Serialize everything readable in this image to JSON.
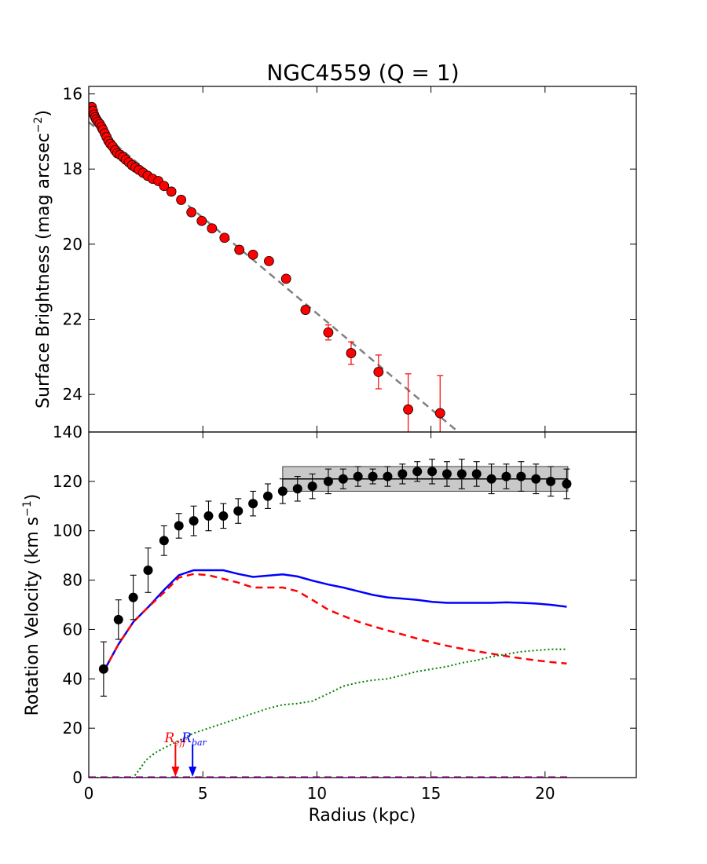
{
  "title": "NGC4559 (Q = 1)",
  "chart_data": [
    {
      "type": "scatter",
      "xlabel": "",
      "ylabel": "Surface Brightness (mag arcsec",
      "ylabel_sup": "−2",
      "ylabel_close": ")",
      "xlim": [
        0,
        24
      ],
      "ylim": [
        25,
        15.8
      ],
      "y_inverted": true,
      "yticks": [
        16,
        18,
        20,
        22,
        24
      ],
      "xticks": [
        0,
        5,
        10,
        15,
        20
      ],
      "show_xticklabels": false,
      "marker_color": "#ff0000",
      "fit_line": {
        "style": "dashed",
        "color": "#808080",
        "x": [
          0,
          16.2
        ],
        "y": [
          16.75,
          25.0
        ]
      },
      "series": [
        {
          "points": [
            {
              "x": 0.13,
              "y": 16.35
            },
            {
              "x": 0.18,
              "y": 16.45
            },
            {
              "x": 0.23,
              "y": 16.55
            },
            {
              "x": 0.28,
              "y": 16.62
            },
            {
              "x": 0.33,
              "y": 16.68
            },
            {
              "x": 0.4,
              "y": 16.74
            },
            {
              "x": 0.48,
              "y": 16.8
            },
            {
              "x": 0.56,
              "y": 16.88
            },
            {
              "x": 0.62,
              "y": 16.95
            },
            {
              "x": 0.7,
              "y": 17.05
            },
            {
              "x": 0.78,
              "y": 17.15
            },
            {
              "x": 0.86,
              "y": 17.25
            },
            {
              "x": 0.95,
              "y": 17.33
            },
            {
              "x": 1.05,
              "y": 17.4
            },
            {
              "x": 1.15,
              "y": 17.5
            },
            {
              "x": 1.25,
              "y": 17.58
            },
            {
              "x": 1.38,
              "y": 17.62
            },
            {
              "x": 1.5,
              "y": 17.68
            },
            {
              "x": 1.62,
              "y": 17.75
            },
            {
              "x": 1.76,
              "y": 17.82
            },
            {
              "x": 1.9,
              "y": 17.9
            },
            {
              "x": 2.05,
              "y": 17.96
            },
            {
              "x": 2.2,
              "y": 18.02
            },
            {
              "x": 2.38,
              "y": 18.1
            },
            {
              "x": 2.58,
              "y": 18.18
            },
            {
              "x": 2.8,
              "y": 18.26
            },
            {
              "x": 3.05,
              "y": 18.32
            },
            {
              "x": 3.3,
              "y": 18.45
            },
            {
              "x": 3.62,
              "y": 18.6
            },
            {
              "x": 4.05,
              "y": 18.82
            },
            {
              "x": 4.5,
              "y": 19.15
            },
            {
              "x": 4.95,
              "y": 19.38
            },
            {
              "x": 5.4,
              "y": 19.58
            },
            {
              "x": 5.95,
              "y": 19.83
            },
            {
              "x": 6.6,
              "y": 20.15
            },
            {
              "x": 7.2,
              "y": 20.28
            },
            {
              "x": 7.9,
              "y": 20.45
            },
            {
              "x": 8.65,
              "y": 20.92
            },
            {
              "x": 9.5,
              "y": 21.75
            },
            {
              "x": 10.5,
              "y": 22.35,
              "err": 0.2
            },
            {
              "x": 11.5,
              "y": 22.9,
              "err": 0.3
            },
            {
              "x": 12.7,
              "y": 23.4,
              "err": 0.45
            },
            {
              "x": 14.0,
              "y": 24.4,
              "err": 0.95
            },
            {
              "x": 15.4,
              "y": 24.5,
              "err": 1.0
            }
          ]
        }
      ]
    },
    {
      "type": "line",
      "xlabel": "Radius (kpc)",
      "ylabel": "Rotation Velocity (km s",
      "ylabel_sup": "−1",
      "ylabel_close": ")",
      "xlim": [
        0,
        24
      ],
      "ylim": [
        0,
        140
      ],
      "xticks": [
        0,
        5,
        10,
        15,
        20
      ],
      "yticks": [
        0,
        20,
        40,
        60,
        80,
        100,
        120,
        140
      ],
      "flat_band": {
        "x": [
          8.5,
          21.0
        ],
        "y_center": 121.0,
        "y_low": 116.0,
        "y_high": 126.0
      },
      "observed": {
        "color": "#000000",
        "points": [
          {
            "x": 0.65,
            "y": 44,
            "err": 11
          },
          {
            "x": 1.3,
            "y": 64,
            "err": 8
          },
          {
            "x": 1.95,
            "y": 73,
            "err": 9
          },
          {
            "x": 2.6,
            "y": 84,
            "err": 9
          },
          {
            "x": 3.3,
            "y": 96,
            "err": 6
          },
          {
            "x": 3.95,
            "y": 102,
            "err": 5
          },
          {
            "x": 4.6,
            "y": 104,
            "err": 6
          },
          {
            "x": 5.25,
            "y": 106,
            "err": 6
          },
          {
            "x": 5.9,
            "y": 106,
            "err": 5
          },
          {
            "x": 6.55,
            "y": 108,
            "err": 5
          },
          {
            "x": 7.2,
            "y": 111,
            "err": 5
          },
          {
            "x": 7.85,
            "y": 114,
            "err": 5
          },
          {
            "x": 8.5,
            "y": 116,
            "err": 5
          },
          {
            "x": 9.15,
            "y": 117,
            "err": 5
          },
          {
            "x": 9.8,
            "y": 118,
            "err": 5
          },
          {
            "x": 10.5,
            "y": 120,
            "err": 5
          },
          {
            "x": 11.15,
            "y": 121,
            "err": 4
          },
          {
            "x": 11.8,
            "y": 122,
            "err": 4
          },
          {
            "x": 12.45,
            "y": 122,
            "err": 3
          },
          {
            "x": 13.1,
            "y": 122,
            "err": 4
          },
          {
            "x": 13.75,
            "y": 123,
            "err": 4
          },
          {
            "x": 14.4,
            "y": 124,
            "err": 4
          },
          {
            "x": 15.05,
            "y": 124,
            "err": 5
          },
          {
            "x": 15.7,
            "y": 123,
            "err": 5
          },
          {
            "x": 16.35,
            "y": 123,
            "err": 6
          },
          {
            "x": 17.0,
            "y": 123,
            "err": 5
          },
          {
            "x": 17.65,
            "y": 121,
            "err": 6
          },
          {
            "x": 18.3,
            "y": 122,
            "err": 5
          },
          {
            "x": 18.95,
            "y": 122,
            "err": 6
          },
          {
            "x": 19.6,
            "y": 121,
            "err": 6
          },
          {
            "x": 20.25,
            "y": 120,
            "err": 6
          },
          {
            "x": 20.95,
            "y": 119,
            "err": 6
          }
        ]
      },
      "series": [
        {
          "style": "solid",
          "color": "#0000ff",
          "x": [
            0.65,
            1.3,
            1.95,
            2.6,
            3.3,
            3.95,
            4.6,
            5.25,
            5.9,
            6.55,
            7.2,
            7.85,
            8.5,
            9.15,
            9.8,
            10.5,
            11.15,
            11.8,
            12.45,
            13.1,
            13.75,
            14.4,
            15.05,
            15.7,
            16.35,
            17.0,
            17.65,
            18.3,
            18.95,
            19.6,
            20.25,
            20.95
          ],
          "y": [
            43,
            54,
            63,
            69,
            76,
            82,
            84,
            84,
            84,
            82.5,
            81.3,
            81.8,
            82.3,
            81.5,
            79.8,
            78.2,
            77,
            75.5,
            74,
            73,
            72.5,
            72,
            71.2,
            70.8,
            70.8,
            70.8,
            70.8,
            71,
            70.8,
            70.5,
            70,
            69.2
          ]
        },
        {
          "style": "dashed",
          "color": "#ff0000",
          "x": [
            0.65,
            1.3,
            1.95,
            2.6,
            3.3,
            3.95,
            4.6,
            5.25,
            5.9,
            6.55,
            7.2,
            7.85,
            8.5,
            9.15,
            9.8,
            10.5,
            11.15,
            11.8,
            12.45,
            13.1,
            13.75,
            14.4,
            15.05,
            15.7,
            16.35,
            17.0,
            17.65,
            18.3,
            18.95,
            19.6,
            20.25,
            20.95
          ],
          "y": [
            43,
            54,
            63,
            69,
            75,
            81,
            82.5,
            82,
            80.5,
            79,
            77,
            77,
            77,
            75.5,
            72,
            68,
            65.5,
            63.2,
            61.3,
            59.6,
            58,
            56.3,
            54.8,
            53.4,
            52.2,
            51.2,
            50.2,
            49.2,
            48.3,
            47.5,
            46.8,
            46.2
          ]
        },
        {
          "style": "dotted",
          "color": "#008000",
          "x": [
            0,
            1.95,
            2.2,
            2.5,
            2.9,
            3.3,
            3.95,
            4.6,
            5.25,
            5.9,
            6.55,
            7.2,
            7.85,
            8.5,
            9.15,
            9.8,
            10.5,
            11.15,
            11.8,
            12.45,
            13.1,
            13.75,
            14.4,
            15.05,
            15.7,
            16.35,
            17.0,
            17.65,
            18.3,
            18.95,
            19.6,
            20.25,
            20.95
          ],
          "y": [
            0,
            0,
            3,
            7,
            10,
            12,
            15,
            18,
            20,
            22,
            24,
            26,
            28,
            29.5,
            30,
            31,
            34,
            37,
            38.5,
            39.5,
            40,
            41.5,
            43,
            44,
            45,
            46.5,
            47.5,
            49,
            50,
            51,
            51.5,
            52,
            52
          ]
        },
        {
          "style": "dashed",
          "color": "#bf00bf",
          "x": [
            0,
            21
          ],
          "y": [
            0.3,
            0.3
          ]
        }
      ],
      "markers": [
        {
          "label": "R",
          "sub": "eff",
          "color": "#ff0000",
          "x": 3.8
        },
        {
          "label": "R",
          "sub": "bar",
          "color": "#0000ff",
          "x": 4.55
        }
      ]
    }
  ]
}
